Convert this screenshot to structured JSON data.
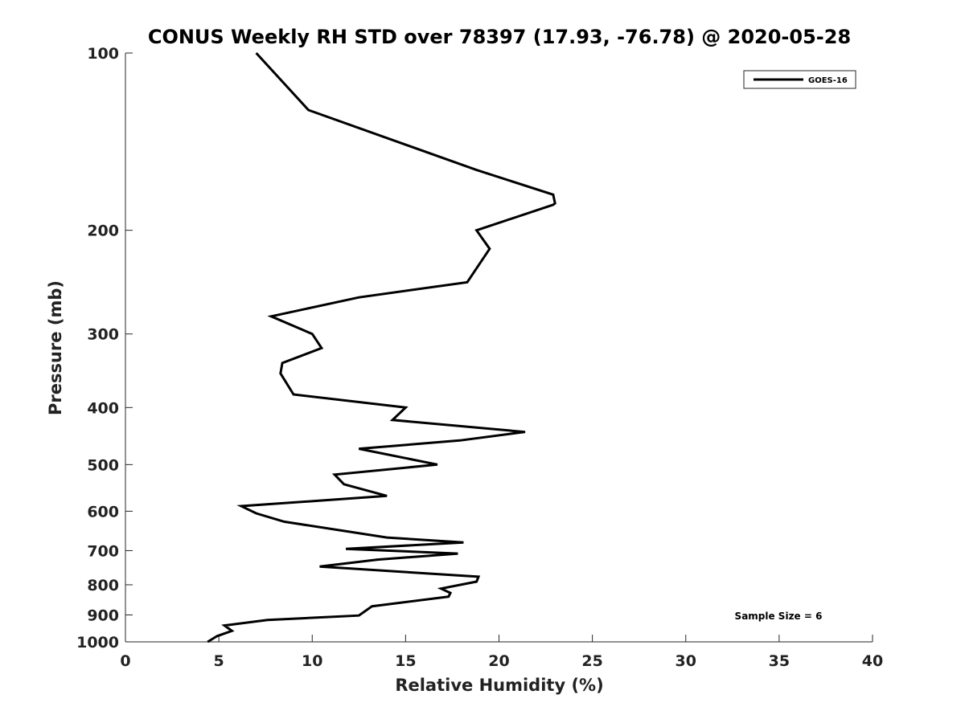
{
  "chart_data": {
    "type": "line",
    "title": "CONUS Weekly RH STD over 78397 (17.93, -76.78) @ 2020-05-28",
    "xlabel": "Relative Humidity (%)",
    "ylabel": "Pressure (mb)",
    "xlim": [
      0,
      40
    ],
    "ylim": [
      100,
      1000
    ],
    "y_scale": "log",
    "y_reversed": true,
    "grid": false,
    "legend_position": "top-right",
    "x_ticks": [
      "0",
      "5",
      "10",
      "15",
      "20",
      "25",
      "30",
      "35",
      "40"
    ],
    "y_ticks": [
      "100",
      "200",
      "300",
      "400",
      "500",
      "600",
      "700",
      "800",
      "900",
      "1000"
    ],
    "series": [
      {
        "name": "GOES-16",
        "color": "#000000",
        "points": [
          [
            7.0,
            100
          ],
          [
            9.8,
            125
          ],
          [
            18.8,
            158
          ],
          [
            22.9,
            174
          ],
          [
            23.0,
            180
          ],
          [
            22.9,
            181
          ],
          [
            18.8,
            200
          ],
          [
            19.5,
            215
          ],
          [
            18.3,
            245
          ],
          [
            12.5,
            260
          ],
          [
            7.8,
            280
          ],
          [
            10.0,
            300
          ],
          [
            10.5,
            317
          ],
          [
            8.4,
            336
          ],
          [
            8.3,
            350
          ],
          [
            9.0,
            380
          ],
          [
            15.0,
            400
          ],
          [
            14.3,
            420
          ],
          [
            21.4,
            440
          ],
          [
            17.9,
            455
          ],
          [
            12.5,
            470
          ],
          [
            16.7,
            500
          ],
          [
            11.2,
            520
          ],
          [
            11.7,
            540
          ],
          [
            14.0,
            565
          ],
          [
            6.2,
            588
          ],
          [
            7.0,
            605
          ],
          [
            8.5,
            625
          ],
          [
            14.0,
            665
          ],
          [
            18.1,
            678
          ],
          [
            11.8,
            695
          ],
          [
            17.8,
            708
          ],
          [
            13.5,
            725
          ],
          [
            10.4,
            745
          ],
          [
            18.9,
            775
          ],
          [
            18.8,
            790
          ],
          [
            16.9,
            812
          ],
          [
            17.4,
            826
          ],
          [
            17.3,
            838
          ],
          [
            13.2,
            870
          ],
          [
            12.5,
            902
          ],
          [
            7.6,
            918
          ],
          [
            5.3,
            938
          ],
          [
            5.7,
            958
          ],
          [
            4.9,
            978
          ],
          [
            4.4,
            1000
          ]
        ]
      }
    ],
    "annotations": [
      "Sample Size = 6"
    ]
  }
}
